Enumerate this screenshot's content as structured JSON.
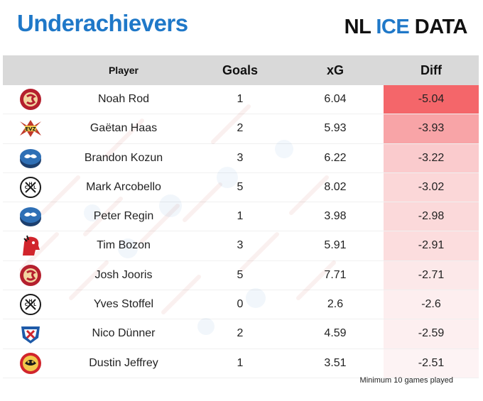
{
  "header": {
    "title": "Underachievers",
    "brand_main": "NL ",
    "brand_accent": "ICE",
    "brand_tail": " DATA"
  },
  "columns": {
    "player": "Player",
    "goals": "Goals",
    "xg": "xG",
    "diff": "Diff"
  },
  "footnote": "Minimum 10 games played",
  "colors": {
    "title": "#1f78c8",
    "header_bg": "#d9d9d9",
    "diff_strong": "#f4666a",
    "diff_weak": "#fdf3f4"
  },
  "chart_data": {
    "type": "table",
    "title": "Underachievers",
    "columns": [
      "Player",
      "Goals",
      "xG",
      "Diff"
    ],
    "rows": [
      {
        "team_logo": "geneve-servette-logo",
        "player": "Noah Rod",
        "goals": "1",
        "xg": "6.04",
        "diff": "-5.04"
      },
      {
        "team_logo": "ev-zug-logo",
        "player": "Gaëtan Haas",
        "goals": "2",
        "xg": "5.93",
        "diff": "-3.93"
      },
      {
        "team_logo": "lausanne-hc-logo",
        "player": "Brandon Kozun",
        "goals": "3",
        "xg": "6.22",
        "diff": "-3.22"
      },
      {
        "team_logo": "hc-lugano-logo",
        "player": "Mark Arcobello",
        "goals": "5",
        "xg": "8.02",
        "diff": "-3.02"
      },
      {
        "team_logo": "lausanne-hc-logo",
        "player": "Peter Regin",
        "goals": "1",
        "xg": "3.98",
        "diff": "-2.98"
      },
      {
        "team_logo": "lions-zurich-logo",
        "player": "Tim Bozon",
        "goals": "3",
        "xg": "5.91",
        "diff": "-2.91"
      },
      {
        "team_logo": "geneve-servette-logo",
        "player": "Josh Jooris",
        "goals": "5",
        "xg": "7.71",
        "diff": "-2.71"
      },
      {
        "team_logo": "hc-lugano-logo",
        "player": "Yves Stoffel",
        "goals": "0",
        "xg": "2.6",
        "diff": "-2.6"
      },
      {
        "team_logo": "ehc-kloten-logo",
        "player": "Nico Dünner",
        "goals": "2",
        "xg": "4.59",
        "diff": "-2.59"
      },
      {
        "team_logo": "scl-tigers-logo",
        "player": "Dustin Jeffrey",
        "goals": "1",
        "xg": "3.51",
        "diff": "-2.51"
      }
    ],
    "diff_min": -5.04,
    "diff_max": -2.51
  }
}
